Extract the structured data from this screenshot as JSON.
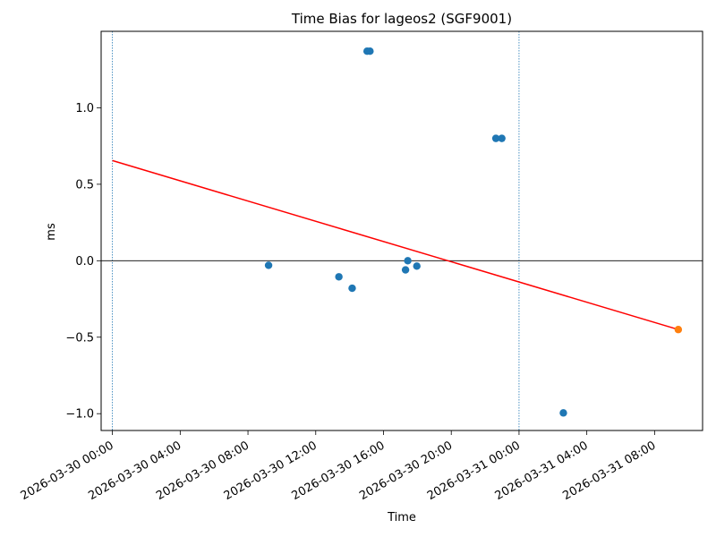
{
  "chart_data": {
    "type": "scatter",
    "title": "Time Bias for lageos2 (SGF9001)",
    "xlabel": "Time",
    "ylabel": "ms",
    "x_axis_kind": "datetime",
    "xlim": [
      "2026-03-29T23:20:00",
      "2026-03-31T10:50:00"
    ],
    "ylim": [
      -1.11,
      1.5
    ],
    "x_ticks": [
      "2026-03-30 00:00",
      "2026-03-30 04:00",
      "2026-03-30 08:00",
      "2026-03-30 12:00",
      "2026-03-30 16:00",
      "2026-03-30 20:00",
      "2026-03-31 00:00",
      "2026-03-31 04:00",
      "2026-03-31 08:00"
    ],
    "y_ticks": [
      -1.0,
      -0.5,
      0.0,
      0.5,
      1.0
    ],
    "series": [
      {
        "kind": "points",
        "color": "#1f77b4",
        "points": [
          {
            "x": "2026-03-30T09:13:00",
            "y": -0.03
          },
          {
            "x": "2026-03-30T13:22:00",
            "y": -0.105
          },
          {
            "x": "2026-03-30T14:09:00",
            "y": -0.18
          },
          {
            "x": "2026-03-30T15:02:00",
            "y": 1.37
          },
          {
            "x": "2026-03-30T15:12:00",
            "y": 1.37
          },
          {
            "x": "2026-03-30T17:18:00",
            "y": -0.06
          },
          {
            "x": "2026-03-30T17:26:00",
            "y": 0.0
          },
          {
            "x": "2026-03-30T17:58:00",
            "y": -0.035
          },
          {
            "x": "2026-03-30T22:38:00",
            "y": 0.8
          },
          {
            "x": "2026-03-30T22:59:00",
            "y": 0.8
          },
          {
            "x": "2026-03-31T02:37:00",
            "y": -0.995
          }
        ]
      },
      {
        "kind": "points",
        "color": "#ff7f0e",
        "points": [
          {
            "x": "2026-03-31T09:24:00",
            "y": -0.45
          }
        ]
      },
      {
        "kind": "line",
        "color": "#ff0000",
        "points": [
          {
            "x": "2026-03-30T00:00:00",
            "y": 0.655
          },
          {
            "x": "2026-03-31T09:24:00",
            "y": -0.45
          }
        ]
      }
    ],
    "reference_lines": {
      "horizontal": [
        {
          "y": 0.0,
          "color": "#000000"
        }
      ],
      "vertical": [
        {
          "x": "2026-03-30T00:00:00",
          "color": "#1f77b4",
          "style": "dotted"
        },
        {
          "x": "2026-03-31T00:00:00",
          "color": "#1f77b4",
          "style": "dotted"
        }
      ]
    },
    "grid": false,
    "legend": "none"
  }
}
